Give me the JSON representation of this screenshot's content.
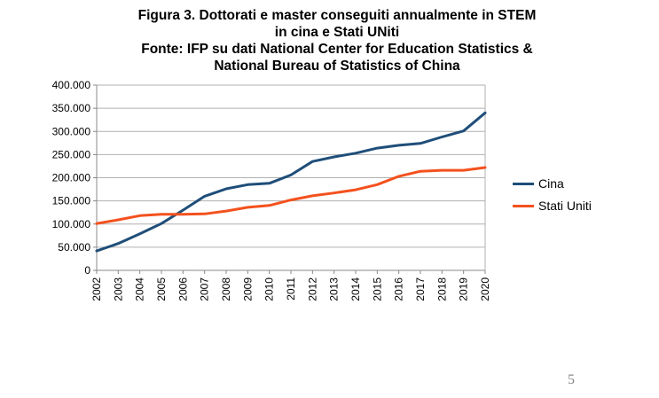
{
  "page": {
    "page_number": "5"
  },
  "chart_data": {
    "type": "line",
    "title_lines": [
      "Figura 3. Dottorati e master conseguiti annualmente in STEM",
      "in cina e Stati UNiti",
      "Fonte: IFP su dati National Center for Education Statistics &",
      "National Bureau of Statistics of China"
    ],
    "x": [
      "2002",
      "2003",
      "2004",
      "2005",
      "2006",
      "2007",
      "2008",
      "2009",
      "2010",
      "2011",
      "2012",
      "2013",
      "2014",
      "2015",
      "2016",
      "2017",
      "2018",
      "2019",
      "2020"
    ],
    "series": [
      {
        "name": "Cina",
        "color": "#1F4E79",
        "values": [
          42000,
          58000,
          79000,
          101000,
          130000,
          160000,
          176000,
          185000,
          188000,
          206000,
          235000,
          245000,
          253000,
          264000,
          270000,
          274000,
          288000,
          301000,
          340000
        ]
      },
      {
        "name": "Stati Uniti",
        "color": "#F4511E",
        "values": [
          101000,
          109000,
          118000,
          121000,
          121000,
          122000,
          128000,
          136000,
          140000,
          152000,
          161000,
          167000,
          174000,
          185000,
          203000,
          214000,
          216000,
          216000,
          222000
        ]
      }
    ],
    "y_ticks": [
      "0",
      "50.000",
      "100.000",
      "150.000",
      "200.000",
      "250.000",
      "300.000",
      "350.000",
      "400.000"
    ],
    "ylim": [
      0,
      400000
    ],
    "grid": true,
    "legend_position": "right"
  }
}
